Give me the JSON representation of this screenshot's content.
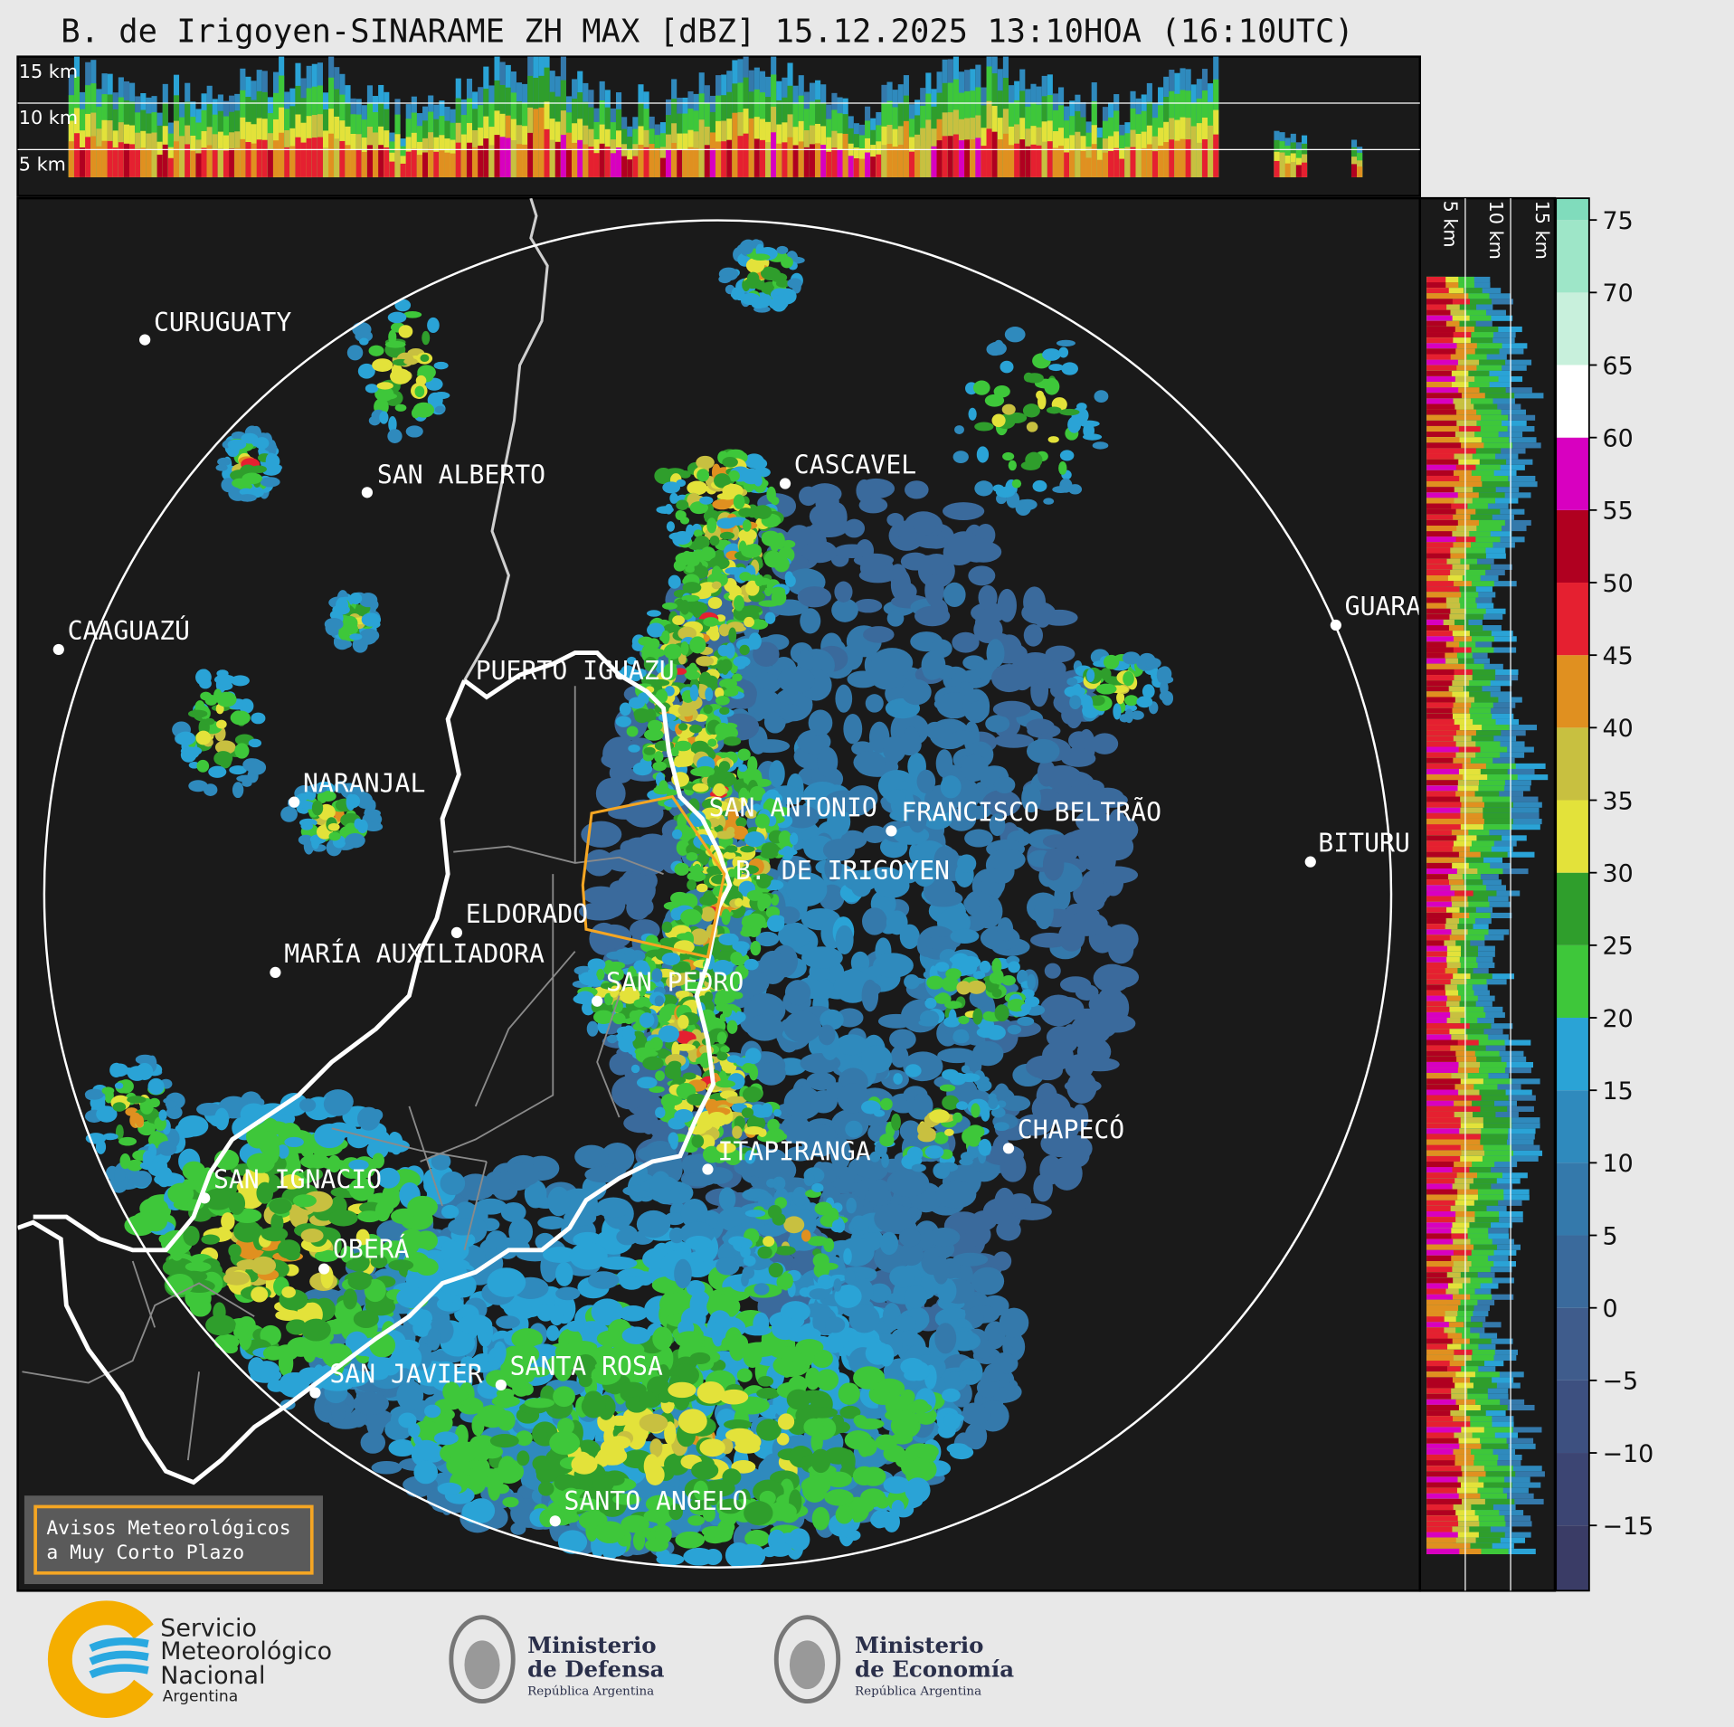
{
  "title": "B. de Irigoyen-SINARAME ZH MAX [dBZ] 15.12.2025 13:10HOA (16:10UTC)",
  "top_section": {
    "labels": [
      "15 km",
      "10 km",
      "5 km"
    ]
  },
  "side_section": {
    "labels": [
      "5 km",
      "10 km",
      "15 km"
    ]
  },
  "cities": [
    {
      "name": "CURUGUATY"
    },
    {
      "name": "SAN ALBERTO"
    },
    {
      "name": "CAAGUAZÚ"
    },
    {
      "name": "PUERTO IGUAZU"
    },
    {
      "name": "GUARA"
    },
    {
      "name": "CASCAVEL"
    },
    {
      "name": "NARANJAL"
    },
    {
      "name": "SAN ANTONIO"
    },
    {
      "name": "FRANCISCO BELTRÃO"
    },
    {
      "name": "B. DE IRIGOYEN"
    },
    {
      "name": "BITURU"
    },
    {
      "name": "ELDORADO"
    },
    {
      "name": "MARÍA AUXILIADORA"
    },
    {
      "name": "SAN PEDRO"
    },
    {
      "name": "CHAPECÓ"
    },
    {
      "name": "ITAPIRANGA"
    },
    {
      "name": "SAN IGNACIO"
    },
    {
      "name": "OBERÁ"
    },
    {
      "name": "SAN JAVIER"
    },
    {
      "name": "SANTA ROSA"
    },
    {
      "name": "SANTO ANGELO"
    }
  ],
  "colorbar": {
    "lim": [
      -19.5,
      76.5
    ],
    "bands": [
      {
        "from": -20,
        "color": "#3a3c66"
      },
      {
        "from": -15,
        "color": "#3c4573"
      },
      {
        "from": -10,
        "color": "#3d5080"
      },
      {
        "from": -5,
        "color": "#3f5c8c"
      },
      {
        "from": 0,
        "color": "#3a6a9c"
      },
      {
        "from": 5,
        "color": "#3479ab"
      },
      {
        "from": 10,
        "color": "#2f8abd"
      },
      {
        "from": 15,
        "color": "#2aa3d6"
      },
      {
        "from": 20,
        "color": "#3ec73a"
      },
      {
        "from": 25,
        "color": "#2f9e2c"
      },
      {
        "from": 30,
        "color": "#e3e23a"
      },
      {
        "from": 35,
        "color": "#c8c040"
      },
      {
        "from": 40,
        "color": "#e09020"
      },
      {
        "from": 45,
        "color": "#e52030"
      },
      {
        "from": 50,
        "color": "#b00020"
      },
      {
        "from": 55,
        "color": "#d800c0"
      },
      {
        "from": 60,
        "color": "#ffffff"
      },
      {
        "from": 65,
        "color": "#c8f0dc"
      },
      {
        "from": 70,
        "color": "#9ee6c8"
      },
      {
        "from": 75,
        "color": "#80dcbc"
      }
    ],
    "ticks": [
      {
        "value": -15,
        "label": "−15"
      },
      {
        "value": -10,
        "label": "−10"
      },
      {
        "value": -5,
        "label": "−5"
      },
      0,
      5,
      10,
      15,
      20,
      25,
      30,
      35,
      40,
      45,
      50,
      55,
      60,
      65,
      70,
      75
    ]
  },
  "warning_box": {
    "lines": [
      "Avisos Meteorológicos",
      "a Muy Corto Plazo"
    ]
  },
  "logos": {
    "smn": [
      "Servicio",
      "Meteorológico",
      "Nacional",
      "Argentina"
    ],
    "defensa": [
      "Ministerio",
      "de Defensa",
      "República Argentina"
    ],
    "economia": [
      "Ministerio",
      "de Economía",
      "República Argentina"
    ]
  }
}
